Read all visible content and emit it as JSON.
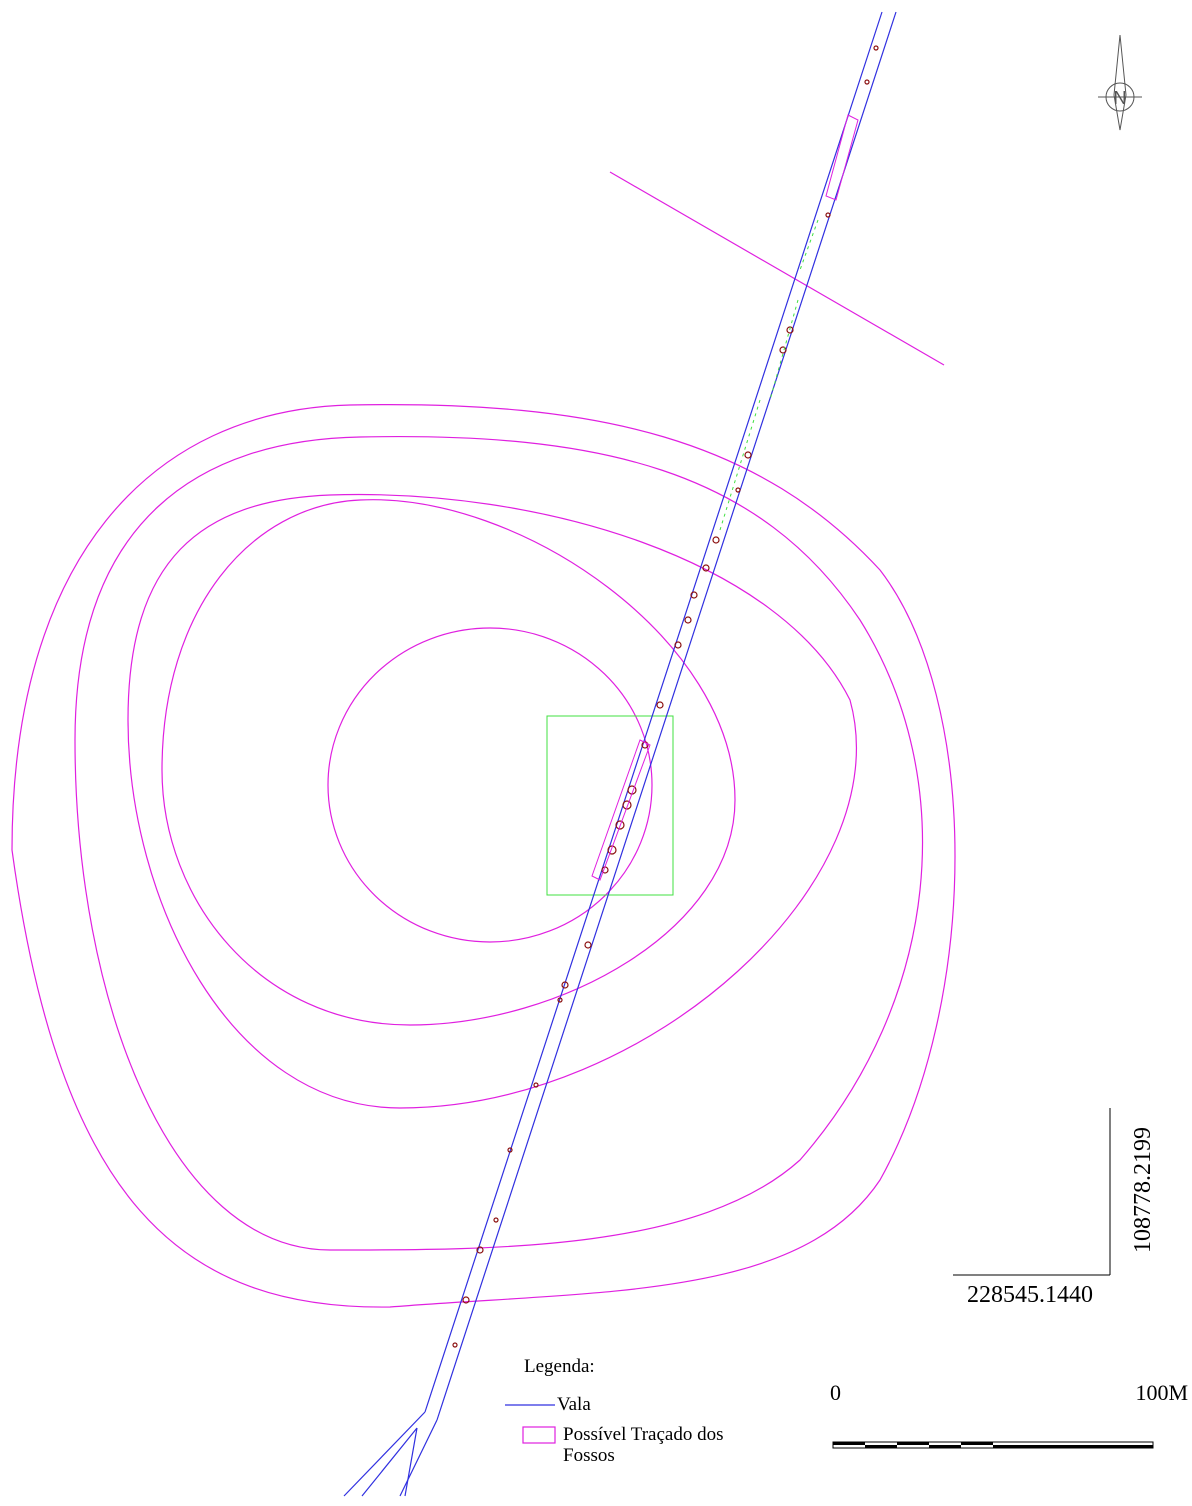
{
  "north": "N",
  "coordinates": {
    "y": "108778.2199",
    "x": "228545.1440"
  },
  "legend": {
    "title": "Legenda:",
    "items": [
      {
        "label": "Vala"
      },
      {
        "label": "Possível Traçado dos Fossos"
      }
    ]
  },
  "scale": {
    "start": "0",
    "end": "100M"
  }
}
